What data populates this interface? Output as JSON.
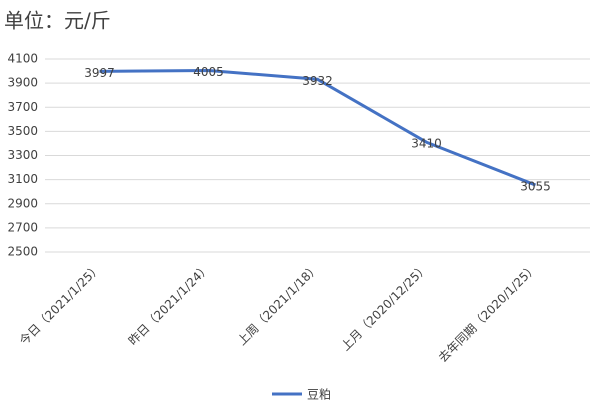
{
  "chart_data": {
    "type": "line",
    "title": "单位：元/斤",
    "categories": [
      "今日（2021/1/25）",
      "昨日（2021/1/24）",
      "上周（2021/1/18）",
      "上月（2020/12/25）",
      "去年同期（2020/1/25）"
    ],
    "series": [
      {
        "name": "豆粕",
        "color": "#4472c4",
        "values": [
          3997,
          4005,
          3932,
          3410,
          3055
        ]
      }
    ],
    "ylim": [
      2500,
      4100
    ],
    "yticks": [
      2500,
      2700,
      2900,
      3100,
      3300,
      3500,
      3700,
      3900,
      4100
    ],
    "grid": true
  }
}
